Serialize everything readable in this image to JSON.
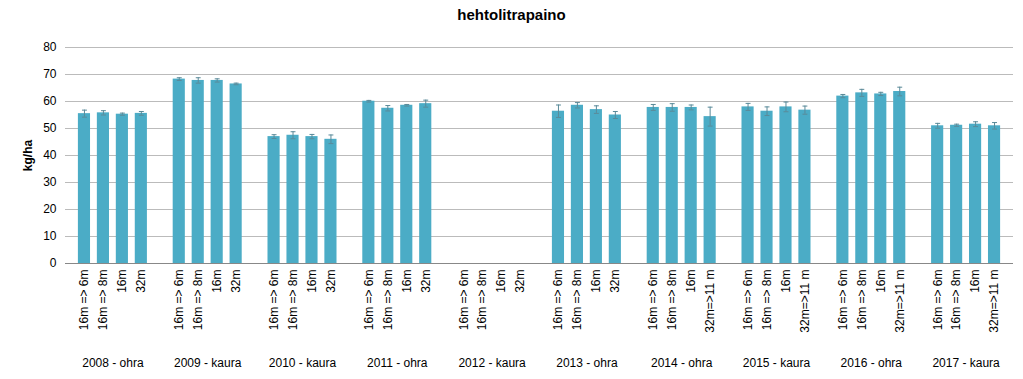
{
  "chart_data": {
    "type": "bar",
    "title": "hehtolitrapaino",
    "y_label": "kg/ha",
    "groups": [
      "2008 - ohra",
      "2009 - kaura",
      "2010 - kaura",
      "2011 - ohra",
      "2012 - kaura",
      "2013 - ohra",
      "2014 - ohra",
      "2015 - kaura",
      "2016 - ohra",
      "2017 - kaura"
    ],
    "categories": [
      "16m => 6m",
      "16m => 8m",
      "16m",
      "32m",
      "16m => 6m",
      "16m => 8m",
      "16m",
      "32m",
      "16m => 6m",
      "16m => 8m",
      "16m",
      "32m",
      "16m => 6m",
      "16m => 8m",
      "16m",
      "32m",
      "16m => 6m",
      "16m => 8m",
      "16m",
      "32m",
      "16m => 6m",
      "16m => 8m",
      "16m",
      "32m",
      "16m => 6m",
      "16m => 8m",
      "16m",
      "32m=>11 m",
      "16m => 6m",
      "16m => 8m",
      "16m",
      "32m=>11 m",
      "16m => 6m",
      "16m => 8m",
      "16m",
      "32m=>11 m",
      "16m => 6m",
      "16m => 8m",
      "16m",
      "32m=>11 m"
    ],
    "values": [
      55.5,
      55.8,
      55.3,
      55.6,
      68.3,
      67.8,
      67.8,
      66.5,
      47.0,
      47.5,
      47.0,
      46.0,
      60.1,
      57.5,
      58.6,
      59.2,
      null,
      null,
      null,
      null,
      56.4,
      58.6,
      57.0,
      55.0,
      57.8,
      57.8,
      57.8,
      54.4,
      58.0,
      56.4,
      58.0,
      56.8,
      62.0,
      63.2,
      62.8,
      63.7,
      51.0,
      51.2,
      51.6,
      51.0
    ],
    "errors": [
      1.3,
      0.8,
      0.4,
      0.7,
      0.5,
      1.0,
      0.6,
      0.3,
      0.7,
      1.3,
      0.8,
      1.6,
      0.3,
      1.0,
      0.3,
      1.3,
      null,
      null,
      null,
      null,
      2.3,
      1.0,
      1.4,
      1.3,
      1.1,
      1.4,
      0.9,
      3.5,
      1.3,
      1.6,
      1.8,
      1.5,
      0.6,
      1.3,
      0.6,
      1.6,
      0.9,
      0.4,
      0.9,
      1.2
    ],
    "color": "#4bacc6",
    "ylim": [
      0,
      80
    ],
    "yticks": [
      0,
      10,
      20,
      30,
      40,
      50,
      60,
      70,
      80
    ],
    "grid": true
  }
}
